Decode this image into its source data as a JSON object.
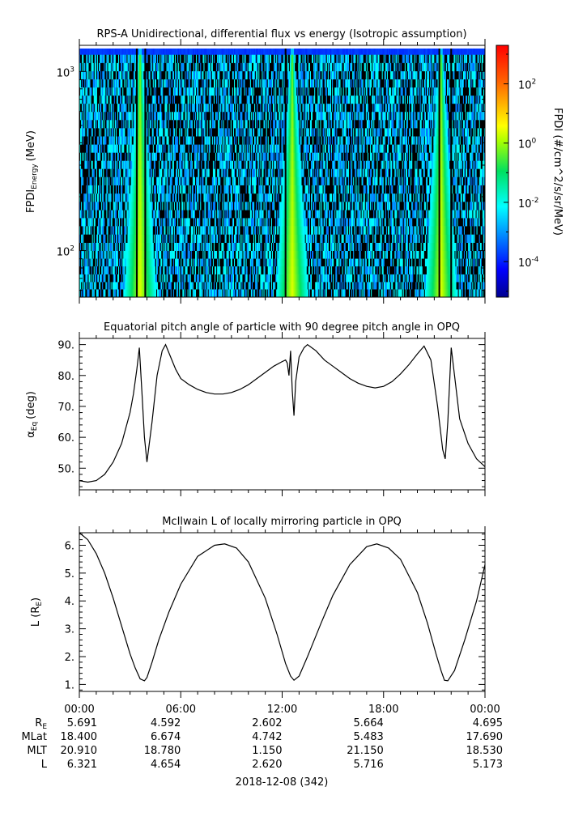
{
  "chart_data": [
    {
      "type": "heatmap",
      "title": "RPS-A Unidirectional, differential flux vs energy (Isotropic assumption)",
      "ylabel_main": "FPDI",
      "ylabel_sub": "Energy",
      "ylabel_unit": "(MeV)",
      "y_scale": "log",
      "ylim": [
        55,
        1400
      ],
      "y_ticks": [
        {
          "value": 100,
          "base": "10",
          "exp": "2"
        },
        {
          "value": 1000,
          "base": "10",
          "exp": "3"
        }
      ],
      "energy_bins_mev": [
        58,
        64,
        70,
        78,
        86,
        95,
        105,
        117,
        130,
        145,
        160,
        178,
        198,
        220,
        245,
        272,
        302,
        335,
        372,
        413,
        459,
        510,
        566,
        629,
        698,
        775,
        860,
        955,
        1060,
        1180,
        1310
      ],
      "x_hours": [
        0,
        24
      ],
      "flux_peaks_hours": [
        3.6,
        12.6,
        21.4
      ],
      "dropouts_hours": [
        3.4,
        3.9,
        12.2,
        21.3,
        22.0
      ],
      "colorbar": {
        "label": "FPDI (#/cm^2/s/sr/MeV)",
        "scale": "log",
        "range_log10": [
          -5.2,
          3.3
        ],
        "ticks": [
          {
            "log": 2,
            "base": "10",
            "exp": "2"
          },
          {
            "log": 0,
            "base": "10",
            "exp": "0"
          },
          {
            "log": -2,
            "base": "10",
            "exp": "-2"
          },
          {
            "log": -4,
            "base": "10",
            "exp": "-4"
          }
        ]
      }
    },
    {
      "type": "line",
      "title": "Equatorial pitch angle of particle with 90 degree pitch angle in OPQ",
      "ylabel_main": "α",
      "ylabel_sub": "Eq",
      "ylabel_unit": "(deg)",
      "ylim": [
        43,
        92
      ],
      "y_ticks": [
        "50.",
        "60.",
        "70.",
        "80.",
        "90."
      ],
      "series": [
        {
          "x": [
            0,
            0.5,
            1.0,
            1.5,
            2.0,
            2.5,
            3.0,
            3.2,
            3.4,
            3.55,
            3.7,
            3.85,
            4.0,
            4.3,
            4.6,
            4.9,
            5.1,
            5.4,
            5.7,
            6.0,
            6.5,
            7.0,
            7.5,
            8.0,
            8.5,
            9.0,
            9.5,
            10.0,
            10.5,
            11.0,
            11.5,
            12.0,
            12.2,
            12.3,
            12.4,
            12.5,
            12.6,
            12.7,
            12.8,
            13.0,
            13.3,
            13.5,
            14.0,
            14.5,
            15.0,
            15.5,
            16.0,
            16.5,
            17.0,
            17.5,
            18.0,
            18.5,
            19.0,
            19.5,
            20.0,
            20.4,
            20.8,
            21.2,
            21.5,
            21.65,
            21.8,
            22.0,
            22.2,
            22.5,
            23.0,
            23.5,
            24.0
          ],
          "y": [
            46,
            45.5,
            46,
            48,
            52,
            58,
            68,
            74,
            82,
            89,
            75,
            60,
            52,
            65,
            80,
            88,
            90,
            86,
            82,
            79,
            77,
            75.5,
            74.5,
            74,
            74,
            74.5,
            75.5,
            77,
            79,
            81,
            83,
            84.5,
            85,
            84,
            80,
            88,
            75,
            67,
            78,
            86,
            89,
            90,
            88,
            85,
            83,
            81,
            79,
            77.5,
            76.5,
            76,
            76.5,
            78,
            80.5,
            83.5,
            87,
            89.5,
            85,
            70,
            56,
            53,
            65,
            89,
            80,
            66,
            58,
            53,
            50.5
          ]
        }
      ]
    },
    {
      "type": "line",
      "title": "McIlwain L of locally mirroring particle in OPQ",
      "ylabel_main": "L (R",
      "ylabel_sub": "E",
      "ylabel_unit": ")",
      "ylim": [
        0.75,
        6.45
      ],
      "y_ticks": [
        "1.",
        "2.",
        "3.",
        "4.",
        "5.",
        "6."
      ],
      "series": [
        {
          "x": [
            0,
            0.5,
            1.0,
            1.5,
            2.0,
            2.5,
            3.0,
            3.3,
            3.6,
            3.85,
            4.0,
            4.3,
            4.7,
            5.3,
            6.0,
            7.0,
            8.0,
            8.6,
            9.3,
            10.0,
            11.0,
            11.7,
            12.2,
            12.5,
            12.7,
            13.0,
            13.5,
            14.3,
            15.0,
            16.0,
            17.0,
            17.6,
            18.3,
            19.0,
            20.0,
            20.6,
            21.1,
            21.4,
            21.6,
            21.8,
            22.2,
            22.8,
            23.5,
            24.0
          ],
          "y": [
            6.5,
            6.2,
            5.7,
            5.0,
            4.1,
            3.1,
            2.1,
            1.6,
            1.2,
            1.13,
            1.25,
            1.8,
            2.6,
            3.6,
            4.6,
            5.6,
            6.0,
            6.05,
            5.9,
            5.4,
            4.1,
            2.8,
            1.75,
            1.3,
            1.15,
            1.3,
            2.0,
            3.2,
            4.2,
            5.3,
            5.95,
            6.05,
            5.9,
            5.5,
            4.3,
            3.2,
            2.1,
            1.5,
            1.15,
            1.13,
            1.5,
            2.6,
            4.0,
            5.3
          ]
        }
      ]
    }
  ],
  "x_tick_labels": [
    "00:00",
    "06:00",
    "12:00",
    "18:00",
    "00:00"
  ],
  "x_tick_hours": [
    0,
    6,
    12,
    18,
    24
  ],
  "ephemeris": {
    "rows": [
      {
        "label_main": "R",
        "label_sub": "E",
        "values": [
          "5.691",
          "4.592",
          "2.602",
          "5.664",
          "4.695"
        ]
      },
      {
        "label_main": "MLat",
        "label_sub": "",
        "values": [
          "18.400",
          "6.674",
          "4.742",
          "5.483",
          "17.690"
        ]
      },
      {
        "label_main": "MLT",
        "label_sub": "",
        "values": [
          "20.910",
          "18.780",
          "1.150",
          "21.150",
          "18.530"
        ]
      },
      {
        "label_main": "L",
        "label_sub": "",
        "values": [
          "6.321",
          "4.654",
          "2.620",
          "5.716",
          "5.173"
        ]
      }
    ]
  },
  "date_label": "2018-12-08 (342)"
}
